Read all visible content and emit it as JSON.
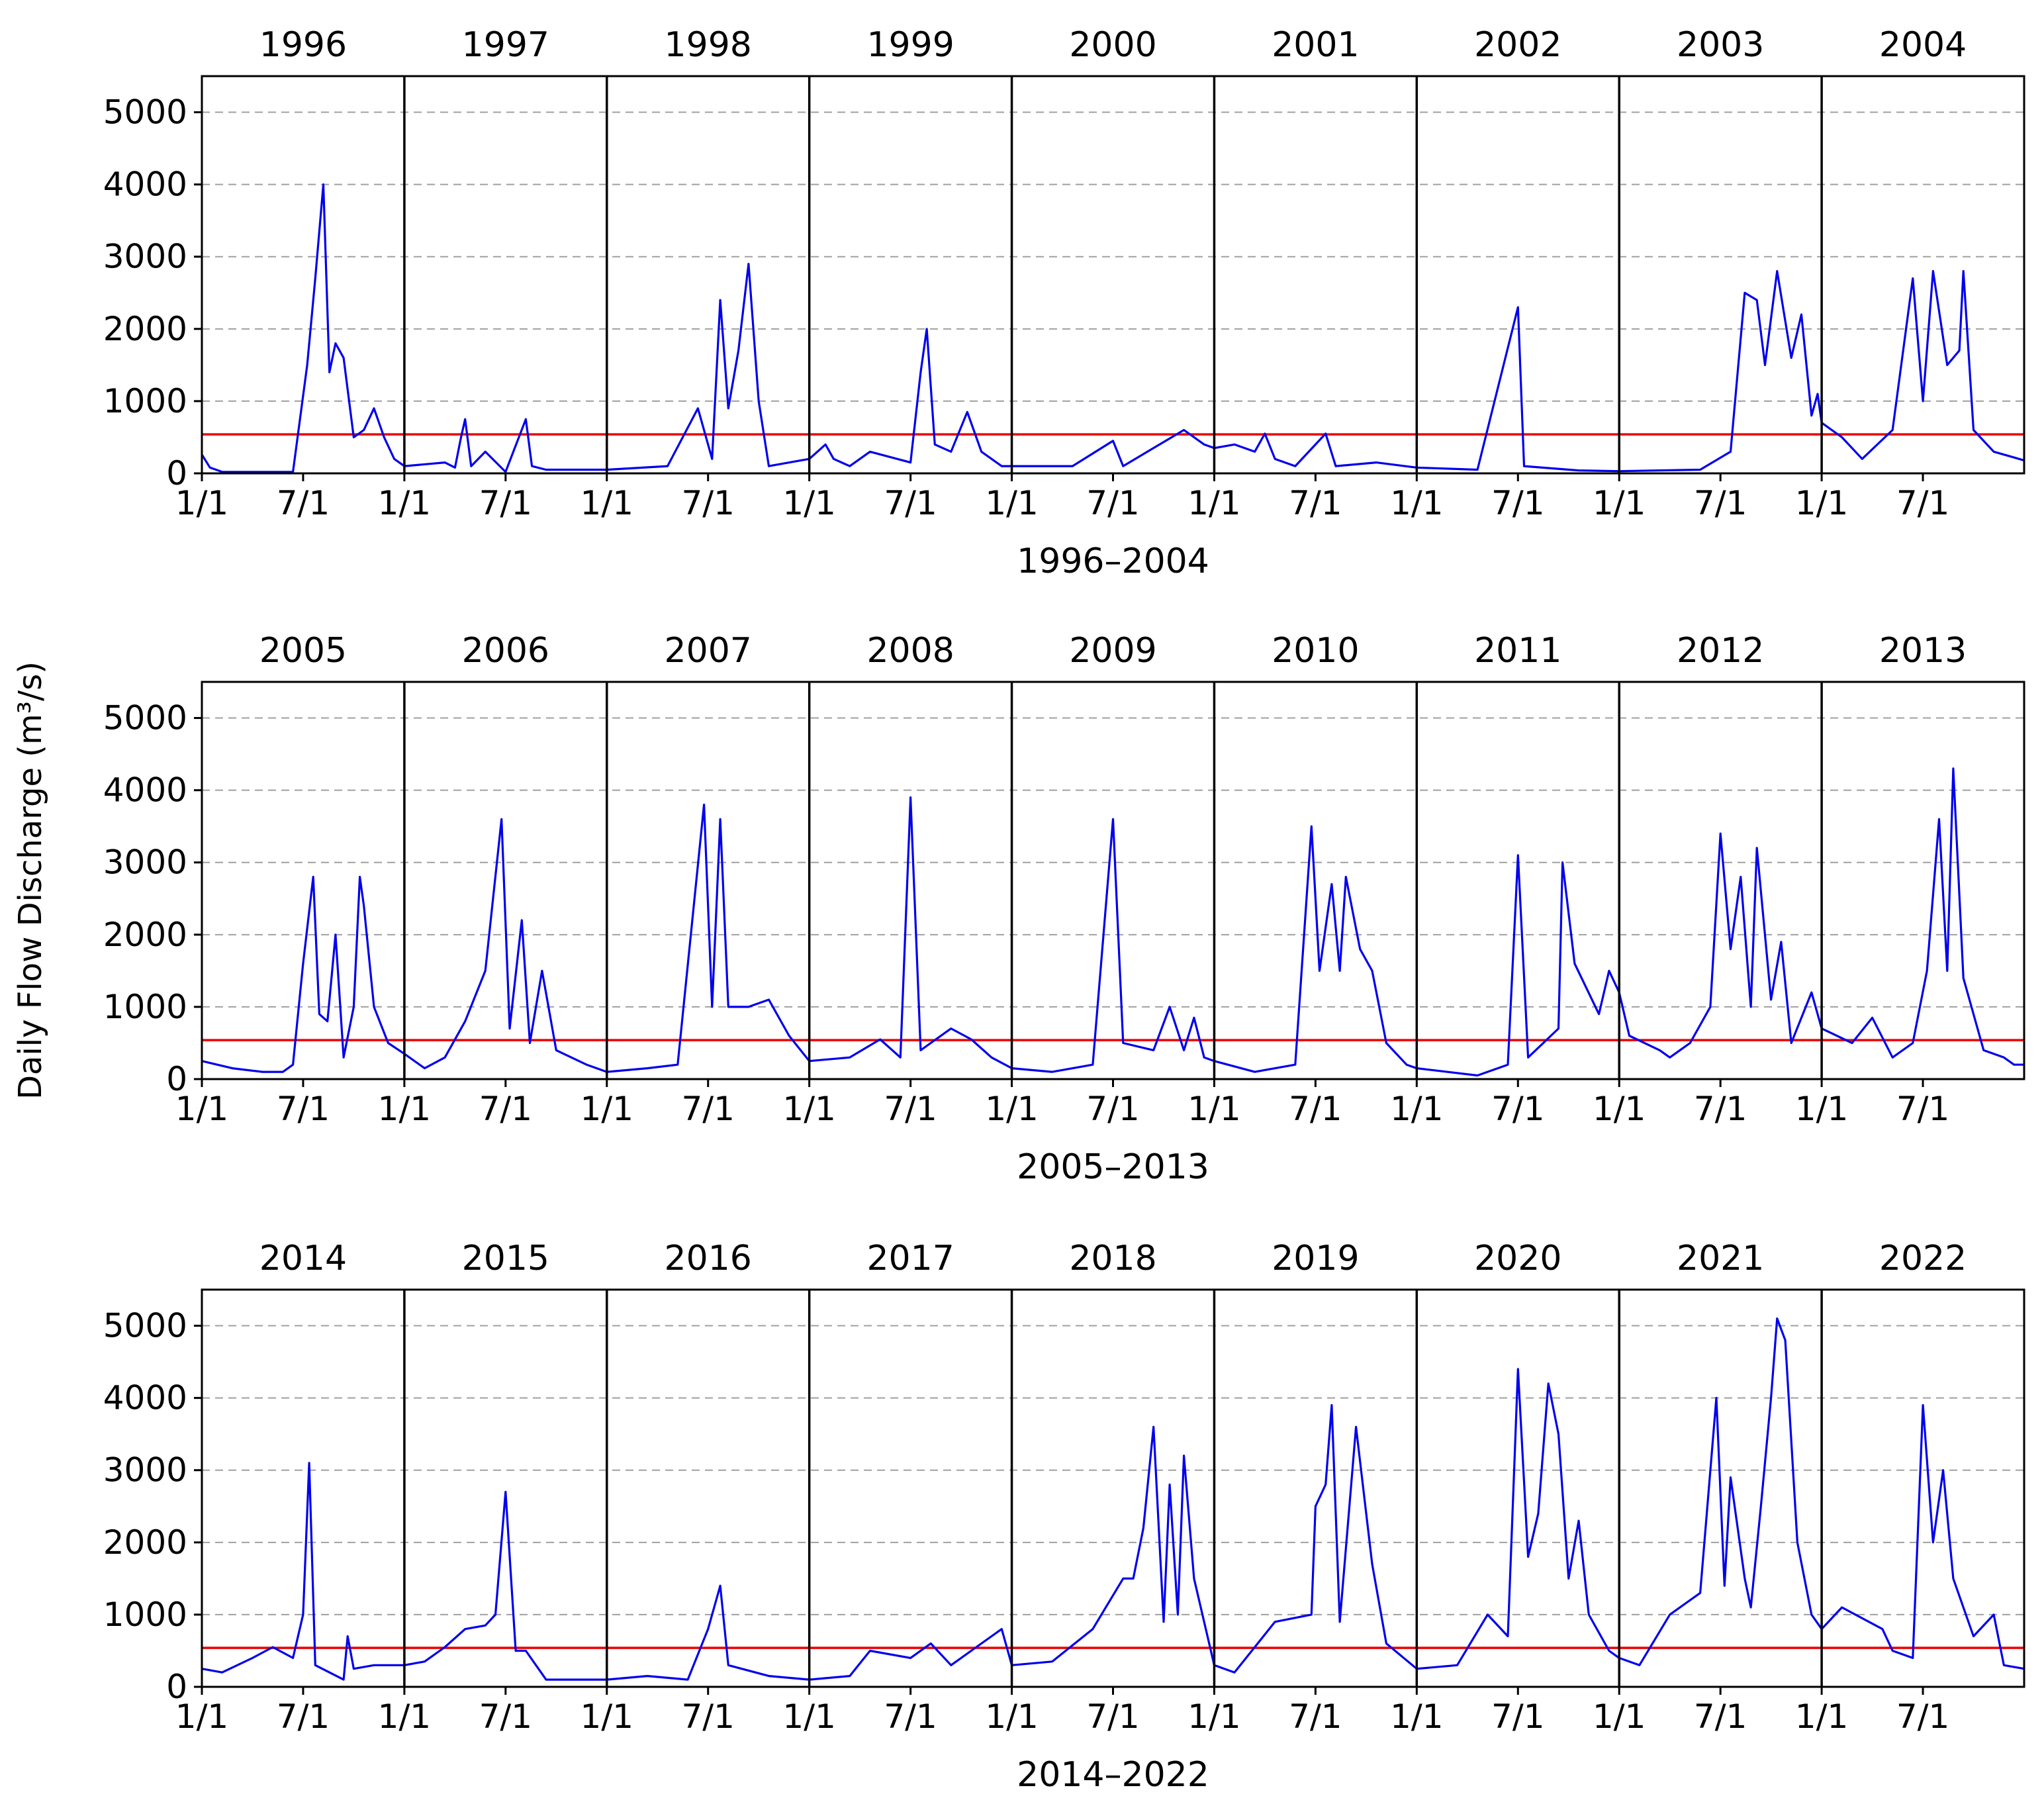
{
  "chart_data": {
    "type": "line",
    "ylabel": "Daily Flow Discharge (m³/s)",
    "yticks": [
      0,
      1000,
      2000,
      3000,
      4000,
      5000
    ],
    "ylim": [
      0,
      5500
    ],
    "xtick_labels": [
      "1/1",
      "7/1"
    ],
    "threshold": 540,
    "colors": {
      "series": "#0000ee",
      "threshold": "#ee0000",
      "grid": "#a0a0a0"
    },
    "panels": [
      {
        "xlabel": "1996–2004",
        "years": [
          "1996",
          "1997",
          "1998",
          "1999",
          "2000",
          "2001",
          "2002",
          "2003",
          "2004"
        ],
        "points": [
          [
            0,
            260
          ],
          [
            0.04,
            80
          ],
          [
            0.1,
            20
          ],
          [
            0.3,
            20
          ],
          [
            0.45,
            20
          ],
          [
            0.52,
            1500
          ],
          [
            0.56,
            2700
          ],
          [
            0.6,
            4000
          ],
          [
            0.63,
            1400
          ],
          [
            0.66,
            1800
          ],
          [
            0.7,
            1600
          ],
          [
            0.75,
            500
          ],
          [
            0.8,
            600
          ],
          [
            0.85,
            900
          ],
          [
            0.9,
            500
          ],
          [
            0.95,
            200
          ],
          [
            1,
            100
          ],
          [
            1.2,
            150
          ],
          [
            1.25,
            80
          ],
          [
            1.28,
            500
          ],
          [
            1.3,
            750
          ],
          [
            1.33,
            100
          ],
          [
            1.4,
            300
          ],
          [
            1.5,
            20
          ],
          [
            1.6,
            750
          ],
          [
            1.63,
            100
          ],
          [
            1.7,
            50
          ],
          [
            2,
            50
          ],
          [
            2.3,
            100
          ],
          [
            2.45,
            900
          ],
          [
            2.52,
            200
          ],
          [
            2.56,
            2400
          ],
          [
            2.6,
            900
          ],
          [
            2.65,
            1700
          ],
          [
            2.7,
            2900
          ],
          [
            2.75,
            1000
          ],
          [
            2.8,
            100
          ],
          [
            3,
            200
          ],
          [
            3.08,
            400
          ],
          [
            3.12,
            200
          ],
          [
            3.2,
            100
          ],
          [
            3.3,
            300
          ],
          [
            3.5,
            150
          ],
          [
            3.55,
            1400
          ],
          [
            3.58,
            2000
          ],
          [
            3.62,
            400
          ],
          [
            3.7,
            300
          ],
          [
            3.78,
            850
          ],
          [
            3.85,
            300
          ],
          [
            3.95,
            100
          ],
          [
            4,
            100
          ],
          [
            4.3,
            100
          ],
          [
            4.5,
            450
          ],
          [
            4.55,
            100
          ],
          [
            4.7,
            350
          ],
          [
            4.85,
            600
          ],
          [
            4.95,
            400
          ],
          [
            5,
            350
          ],
          [
            5.1,
            400
          ],
          [
            5.2,
            300
          ],
          [
            5.25,
            550
          ],
          [
            5.3,
            200
          ],
          [
            5.4,
            100
          ],
          [
            5.55,
            550
          ],
          [
            5.6,
            100
          ],
          [
            5.8,
            150
          ],
          [
            6,
            80
          ],
          [
            6.3,
            50
          ],
          [
            6.5,
            2300
          ],
          [
            6.53,
            100
          ],
          [
            6.8,
            40
          ],
          [
            7,
            30
          ],
          [
            7.4,
            50
          ],
          [
            7.55,
            300
          ],
          [
            7.62,
            2500
          ],
          [
            7.68,
            2400
          ],
          [
            7.72,
            1500
          ],
          [
            7.78,
            2800
          ],
          [
            7.85,
            1600
          ],
          [
            7.9,
            2200
          ],
          [
            7.95,
            800
          ],
          [
            7.98,
            1100
          ],
          [
            8,
            700
          ],
          [
            8.1,
            500
          ],
          [
            8.2,
            200
          ],
          [
            8.35,
            600
          ],
          [
            8.45,
            2700
          ],
          [
            8.5,
            1000
          ],
          [
            8.55,
            2800
          ],
          [
            8.62,
            1500
          ],
          [
            8.68,
            1700
          ],
          [
            8.7,
            2800
          ],
          [
            8.75,
            600
          ],
          [
            8.85,
            300
          ],
          [
            9,
            180
          ]
        ]
      },
      {
        "xlabel": "2005–2013",
        "years": [
          "2005",
          "2006",
          "2007",
          "2008",
          "2009",
          "2010",
          "2011",
          "2012",
          "2013"
        ],
        "points": [
          [
            0,
            250
          ],
          [
            0.15,
            150
          ],
          [
            0.3,
            100
          ],
          [
            0.4,
            100
          ],
          [
            0.45,
            200
          ],
          [
            0.5,
            1600
          ],
          [
            0.55,
            2800
          ],
          [
            0.58,
            900
          ],
          [
            0.62,
            800
          ],
          [
            0.66,
            2000
          ],
          [
            0.7,
            300
          ],
          [
            0.75,
            1000
          ],
          [
            0.78,
            2800
          ],
          [
            0.8,
            2400
          ],
          [
            0.85,
            1000
          ],
          [
            0.92,
            500
          ],
          [
            1,
            350
          ],
          [
            1.1,
            150
          ],
          [
            1.2,
            300
          ],
          [
            1.3,
            800
          ],
          [
            1.4,
            1500
          ],
          [
            1.48,
            3600
          ],
          [
            1.52,
            700
          ],
          [
            1.58,
            2200
          ],
          [
            1.62,
            500
          ],
          [
            1.68,
            1500
          ],
          [
            1.75,
            400
          ],
          [
            1.9,
            200
          ],
          [
            2,
            100
          ],
          [
            2.2,
            150
          ],
          [
            2.35,
            200
          ],
          [
            2.48,
            3800
          ],
          [
            2.52,
            1000
          ],
          [
            2.56,
            3600
          ],
          [
            2.6,
            1000
          ],
          [
            2.7,
            1000
          ],
          [
            2.8,
            1100
          ],
          [
            2.9,
            600
          ],
          [
            3,
            250
          ],
          [
            3.2,
            300
          ],
          [
            3.35,
            550
          ],
          [
            3.45,
            300
          ],
          [
            3.5,
            3900
          ],
          [
            3.55,
            400
          ],
          [
            3.7,
            700
          ],
          [
            3.8,
            550
          ],
          [
            3.9,
            300
          ],
          [
            4,
            150
          ],
          [
            4.2,
            100
          ],
          [
            4.4,
            200
          ],
          [
            4.5,
            3600
          ],
          [
            4.55,
            500
          ],
          [
            4.7,
            400
          ],
          [
            4.78,
            1000
          ],
          [
            4.85,
            400
          ],
          [
            4.9,
            850
          ],
          [
            4.95,
            300
          ],
          [
            5,
            250
          ],
          [
            5.2,
            100
          ],
          [
            5.4,
            200
          ],
          [
            5.48,
            3500
          ],
          [
            5.52,
            1500
          ],
          [
            5.58,
            2700
          ],
          [
            5.62,
            1500
          ],
          [
            5.65,
            2800
          ],
          [
            5.72,
            1800
          ],
          [
            5.78,
            1500
          ],
          [
            5.85,
            500
          ],
          [
            5.95,
            200
          ],
          [
            6,
            150
          ],
          [
            6.3,
            50
          ],
          [
            6.45,
            200
          ],
          [
            6.5,
            3100
          ],
          [
            6.55,
            300
          ],
          [
            6.7,
            700
          ],
          [
            6.72,
            3000
          ],
          [
            6.78,
            1600
          ],
          [
            6.9,
            900
          ],
          [
            6.95,
            1500
          ],
          [
            7,
            1200
          ],
          [
            7.05,
            600
          ],
          [
            7.2,
            400
          ],
          [
            7.25,
            300
          ],
          [
            7.35,
            500
          ],
          [
            7.45,
            1000
          ],
          [
            7.5,
            3400
          ],
          [
            7.55,
            1800
          ],
          [
            7.6,
            2800
          ],
          [
            7.65,
            1000
          ],
          [
            7.68,
            3200
          ],
          [
            7.75,
            1100
          ],
          [
            7.8,
            1900
          ],
          [
            7.85,
            500
          ],
          [
            7.95,
            1200
          ],
          [
            8,
            700
          ],
          [
            8.15,
            500
          ],
          [
            8.25,
            850
          ],
          [
            8.35,
            300
          ],
          [
            8.45,
            500
          ],
          [
            8.52,
            1500
          ],
          [
            8.58,
            3600
          ],
          [
            8.62,
            1500
          ],
          [
            8.65,
            4300
          ],
          [
            8.7,
            1400
          ],
          [
            8.8,
            400
          ],
          [
            8.9,
            300
          ],
          [
            8.95,
            200
          ],
          [
            9,
            200
          ]
        ]
      },
      {
        "xlabel": "2014–2022",
        "years": [
          "2014",
          "2015",
          "2016",
          "2017",
          "2018",
          "2019",
          "2020",
          "2021",
          "2022"
        ],
        "points": [
          [
            0,
            250
          ],
          [
            0.1,
            200
          ],
          [
            0.25,
            400
          ],
          [
            0.35,
            550
          ],
          [
            0.45,
            400
          ],
          [
            0.5,
            1000
          ],
          [
            0.53,
            3100
          ],
          [
            0.56,
            300
          ],
          [
            0.7,
            100
          ],
          [
            0.72,
            700
          ],
          [
            0.75,
            250
          ],
          [
            0.85,
            300
          ],
          [
            1,
            300
          ],
          [
            1.1,
            350
          ],
          [
            1.2,
            550
          ],
          [
            1.3,
            800
          ],
          [
            1.4,
            850
          ],
          [
            1.45,
            1000
          ],
          [
            1.5,
            2700
          ],
          [
            1.55,
            500
          ],
          [
            1.6,
            500
          ],
          [
            1.7,
            100
          ],
          [
            2,
            100
          ],
          [
            2.2,
            150
          ],
          [
            2.4,
            100
          ],
          [
            2.5,
            800
          ],
          [
            2.56,
            1400
          ],
          [
            2.6,
            300
          ],
          [
            2.8,
            150
          ],
          [
            3,
            100
          ],
          [
            3.2,
            150
          ],
          [
            3.3,
            500
          ],
          [
            3.5,
            400
          ],
          [
            3.6,
            600
          ],
          [
            3.7,
            300
          ],
          [
            3.85,
            600
          ],
          [
            3.95,
            800
          ],
          [
            4,
            300
          ],
          [
            4.2,
            350
          ],
          [
            4.4,
            800
          ],
          [
            4.55,
            1500
          ],
          [
            4.6,
            1500
          ],
          [
            4.65,
            2200
          ],
          [
            4.7,
            3600
          ],
          [
            4.75,
            900
          ],
          [
            4.78,
            2800
          ],
          [
            4.82,
            1000
          ],
          [
            4.85,
            3200
          ],
          [
            4.9,
            1500
          ],
          [
            5,
            300
          ],
          [
            5.1,
            200
          ],
          [
            5.3,
            900
          ],
          [
            5.48,
            1000
          ],
          [
            5.5,
            2500
          ],
          [
            5.55,
            2800
          ],
          [
            5.58,
            3900
          ],
          [
            5.62,
            900
          ],
          [
            5.7,
            3600
          ],
          [
            5.78,
            1700
          ],
          [
            5.85,
            600
          ],
          [
            6,
            250
          ],
          [
            6.2,
            300
          ],
          [
            6.35,
            1000
          ],
          [
            6.45,
            700
          ],
          [
            6.5,
            4400
          ],
          [
            6.55,
            1800
          ],
          [
            6.6,
            2400
          ],
          [
            6.65,
            4200
          ],
          [
            6.7,
            3500
          ],
          [
            6.75,
            1500
          ],
          [
            6.8,
            2300
          ],
          [
            6.85,
            1000
          ],
          [
            6.95,
            500
          ],
          [
            7,
            400
          ],
          [
            7.1,
            300
          ],
          [
            7.25,
            1000
          ],
          [
            7.4,
            1300
          ],
          [
            7.48,
            4000
          ],
          [
            7.52,
            1400
          ],
          [
            7.55,
            2900
          ],
          [
            7.62,
            1500
          ],
          [
            7.65,
            1100
          ],
          [
            7.7,
            2500
          ],
          [
            7.75,
            4000
          ],
          [
            7.78,
            5100
          ],
          [
            7.82,
            4800
          ],
          [
            7.88,
            2000
          ],
          [
            7.95,
            1000
          ],
          [
            8,
            800
          ],
          [
            8.1,
            1100
          ],
          [
            8.3,
            800
          ],
          [
            8.35,
            500
          ],
          [
            8.45,
            400
          ],
          [
            8.5,
            3900
          ],
          [
            8.55,
            2000
          ],
          [
            8.6,
            3000
          ],
          [
            8.65,
            1500
          ],
          [
            8.75,
            700
          ],
          [
            8.85,
            1000
          ],
          [
            8.9,
            300
          ],
          [
            9,
            250
          ]
        ]
      }
    ]
  }
}
